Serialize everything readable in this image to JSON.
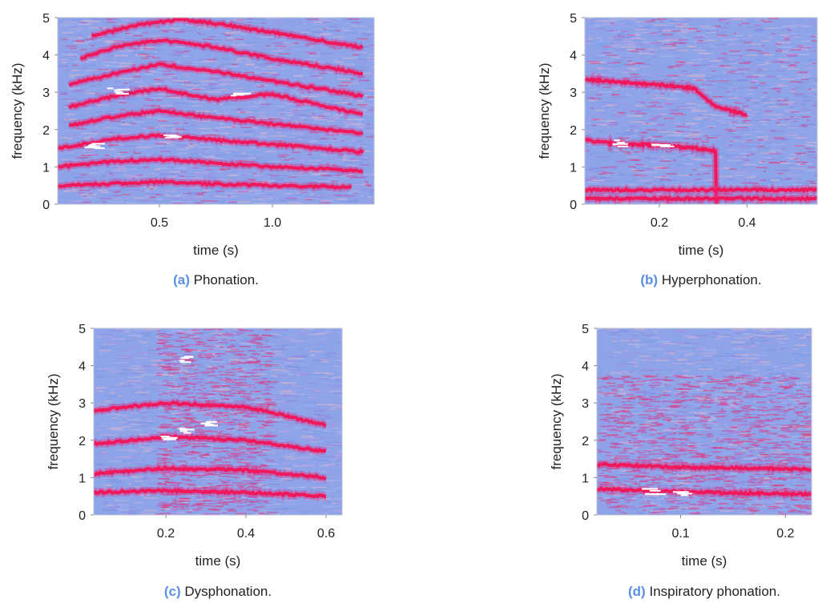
{
  "chart_data": [
    {
      "type": "heatmap",
      "tag": "(a)",
      "caption": "Phonation.",
      "xlabel": "time (s)",
      "ylabel": "frequency (kHz)",
      "xlim": [
        0.05,
        1.45
      ],
      "ylim": [
        0,
        5
      ],
      "xticks": [
        "0.5",
        "1.0"
      ],
      "xtick_values": [
        0.5,
        1.0
      ],
      "yticks": [
        "0",
        "1",
        "2",
        "3",
        "4",
        "5"
      ],
      "ytick_values": [
        0,
        1,
        2,
        3,
        4,
        5
      ],
      "harmonics": [
        {
          "t": [
            0.05,
            0.3,
            0.5,
            0.7,
            1.0,
            1.35
          ],
          "f": [
            0.5,
            0.55,
            0.6,
            0.55,
            0.5,
            0.45
          ]
        },
        {
          "t": [
            0.05,
            0.3,
            0.5,
            0.7,
            1.0,
            1.4
          ],
          "f": [
            1.0,
            1.15,
            1.2,
            1.12,
            1.0,
            0.9
          ]
        },
        {
          "t": [
            0.05,
            0.3,
            0.5,
            0.7,
            1.0,
            1.4
          ],
          "f": [
            1.5,
            1.75,
            1.85,
            1.75,
            1.6,
            1.4
          ]
        },
        {
          "t": [
            0.1,
            0.3,
            0.5,
            0.7,
            1.0,
            1.4
          ],
          "f": [
            2.1,
            2.35,
            2.5,
            2.35,
            2.15,
            1.9
          ]
        },
        {
          "t": [
            0.1,
            0.3,
            0.5,
            0.75,
            1.0,
            1.4
          ],
          "f": [
            2.6,
            2.9,
            3.1,
            2.8,
            2.95,
            2.4
          ]
        },
        {
          "t": [
            0.1,
            0.3,
            0.5,
            0.75,
            1.0,
            1.4
          ],
          "f": [
            3.2,
            3.5,
            3.75,
            3.55,
            3.3,
            2.9
          ]
        },
        {
          "t": [
            0.15,
            0.3,
            0.5,
            0.75,
            1.0,
            1.4
          ],
          "f": [
            3.9,
            4.2,
            4.4,
            4.2,
            3.9,
            3.5
          ]
        },
        {
          "t": [
            0.2,
            0.4,
            0.6,
            0.8,
            1.0,
            1.4
          ],
          "f": [
            4.5,
            4.8,
            4.95,
            4.8,
            4.6,
            4.2
          ]
        }
      ],
      "hotspots": [
        {
          "t": 0.3,
          "f": 3.05
        },
        {
          "t": 0.55,
          "f": 1.85
        },
        {
          "t": 0.85,
          "f": 2.95
        },
        {
          "t": 0.2,
          "f": 1.6
        }
      ]
    },
    {
      "type": "heatmap",
      "tag": "(b)",
      "caption": "Hyperphonation.",
      "xlabel": "time (s)",
      "ylabel": "frequency (kHz)",
      "xlim": [
        0.03,
        0.56
      ],
      "ylim": [
        0,
        5
      ],
      "xticks": [
        "0.2",
        "0.4"
      ],
      "xtick_values": [
        0.2,
        0.4
      ],
      "yticks": [
        "0",
        "1",
        "2",
        "3",
        "4",
        "5"
      ],
      "ytick_values": [
        0,
        1,
        2,
        3,
        4,
        5
      ],
      "harmonics": [
        {
          "t": [
            0.03,
            0.1,
            0.2,
            0.28,
            0.33
          ],
          "f": [
            1.72,
            1.62,
            1.58,
            1.5,
            1.42
          ]
        },
        {
          "t": [
            0.03,
            0.1,
            0.2,
            0.28,
            0.33,
            0.4
          ],
          "f": [
            3.35,
            3.28,
            3.2,
            3.1,
            2.6,
            2.4
          ]
        },
        {
          "t": [
            0.03,
            0.56
          ],
          "f": [
            0.38,
            0.38
          ]
        },
        {
          "t": [
            0.03,
            0.56
          ],
          "f": [
            0.15,
            0.15
          ]
        }
      ],
      "hotspots": [
        {
          "t": 0.1,
          "f": 1.65
        },
        {
          "t": 0.2,
          "f": 1.58
        }
      ]
    },
    {
      "type": "heatmap",
      "tag": "(c)",
      "caption": "Dysphonation.",
      "xlabel": "time (s)",
      "ylabel": "frequency (kHz)",
      "xlim": [
        0.02,
        0.64
      ],
      "ylim": [
        0,
        5
      ],
      "xticks": [
        "0.2",
        "0.4",
        "0.6"
      ],
      "xtick_values": [
        0.2,
        0.4,
        0.6
      ],
      "yticks": [
        "0",
        "1",
        "2",
        "3",
        "4",
        "5"
      ],
      "ytick_values": [
        0,
        1,
        2,
        3,
        4,
        5
      ],
      "harmonics": [
        {
          "t": [
            0.02,
            0.2,
            0.4,
            0.6
          ],
          "f": [
            0.6,
            0.65,
            0.6,
            0.5
          ]
        },
        {
          "t": [
            0.02,
            0.2,
            0.4,
            0.6
          ],
          "f": [
            1.1,
            1.25,
            1.2,
            1.0
          ]
        },
        {
          "t": [
            0.02,
            0.2,
            0.4,
            0.6
          ],
          "f": [
            1.9,
            2.1,
            2.0,
            1.7
          ]
        },
        {
          "t": [
            0.02,
            0.2,
            0.4,
            0.6
          ],
          "f": [
            2.8,
            3.0,
            2.9,
            2.4
          ]
        }
      ],
      "hotspots": [
        {
          "t": 0.25,
          "f": 2.3
        },
        {
          "t": 0.3,
          "f": 2.5
        },
        {
          "t": 0.25,
          "f": 4.2
        },
        {
          "t": 0.2,
          "f": 2.1
        }
      ]
    },
    {
      "type": "heatmap",
      "tag": "(d)",
      "caption": "Inspiratory phonation.",
      "xlabel": "time (s)",
      "ylabel": "frequency (kHz)",
      "xlim": [
        0.02,
        0.225
      ],
      "ylim": [
        0,
        5
      ],
      "xticks": [
        "0.1",
        "0.2"
      ],
      "xtick_values": [
        0.1,
        0.2
      ],
      "yticks": [
        "0",
        "1",
        "2",
        "3",
        "4",
        "5"
      ],
      "ytick_values": [
        0,
        1,
        2,
        3,
        4,
        5
      ],
      "harmonics": [
        {
          "t": [
            0.02,
            0.1,
            0.225
          ],
          "f": [
            0.7,
            0.62,
            0.55
          ]
        },
        {
          "t": [
            0.02,
            0.1,
            0.225
          ],
          "f": [
            1.35,
            1.28,
            1.22
          ]
        }
      ],
      "hotspots": [
        {
          "t": 0.1,
          "f": 0.62
        },
        {
          "t": 0.07,
          "f": 0.65
        }
      ]
    }
  ]
}
